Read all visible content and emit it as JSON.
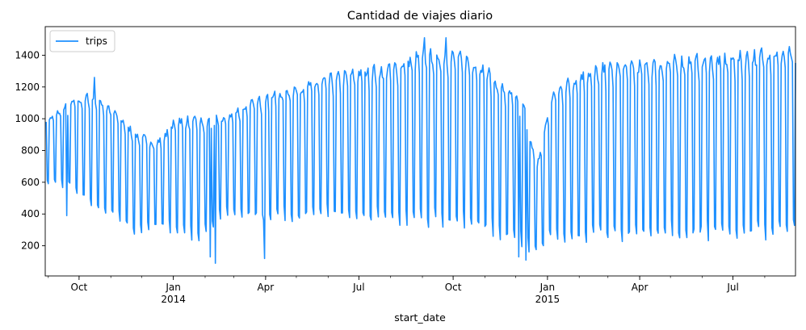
{
  "chart_data": {
    "type": "line",
    "title": "Cantidad de viajes diario",
    "xlabel": "start_date",
    "ylabel": "",
    "x_start": "2013-08-29",
    "x_end": "2015-08-31",
    "ylim": [
      10,
      1580
    ],
    "legend": {
      "position": "top-left",
      "entries": [
        "trips"
      ]
    },
    "grid": false,
    "y_ticks": [
      200,
      400,
      600,
      800,
      1000,
      1200,
      1400
    ],
    "x_ticks": [
      {
        "date": "2013-10-01",
        "label": "Oct",
        "sublabel": ""
      },
      {
        "date": "2014-01-01",
        "label": "Jan",
        "sublabel": "2014"
      },
      {
        "date": "2014-04-01",
        "label": "Apr",
        "sublabel": ""
      },
      {
        "date": "2014-07-01",
        "label": "Jul",
        "sublabel": ""
      },
      {
        "date": "2014-10-01",
        "label": "Oct",
        "sublabel": ""
      },
      {
        "date": "2015-01-01",
        "label": "Jan",
        "sublabel": "2015"
      },
      {
        "date": "2015-04-01",
        "label": "Apr",
        "sublabel": ""
      },
      {
        "date": "2015-07-01",
        "label": "Jul",
        "sublabel": ""
      }
    ],
    "series": [
      {
        "name": "trips",
        "color": "#1e90ff",
        "weekly_profile": [
          [
            "2013-09-02",
            1000,
            620
          ],
          [
            "2013-09-23",
            1100,
            600
          ],
          [
            "2013-10-14",
            1150,
            480
          ],
          [
            "2013-11-04",
            1050,
            420
          ],
          [
            "2013-11-25",
            900,
            320
          ],
          [
            "2013-12-16",
            850,
            350
          ],
          [
            "2014-01-06",
            1000,
            330
          ],
          [
            "2014-01-27",
            980,
            280
          ],
          [
            "2014-02-17",
            1000,
            420
          ],
          [
            "2014-03-10",
            1070,
            430
          ],
          [
            "2014-04-07",
            1150,
            420
          ],
          [
            "2014-05-05",
            1200,
            420
          ],
          [
            "2014-06-02",
            1250,
            430
          ],
          [
            "2014-07-07",
            1300,
            420
          ],
          [
            "2014-08-04",
            1330,
            400
          ],
          [
            "2014-09-01",
            1400,
            400
          ],
          [
            "2014-09-29",
            1400,
            400
          ],
          [
            "2014-10-27",
            1350,
            380
          ],
          [
            "2014-11-17",
            1200,
            300
          ],
          [
            "2014-12-08",
            1100,
            260
          ],
          [
            "2014-12-22",
            700,
            180
          ],
          [
            "2015-01-05",
            1150,
            300
          ],
          [
            "2015-02-02",
            1280,
            300
          ],
          [
            "2015-03-02",
            1320,
            320
          ],
          [
            "2015-04-06",
            1340,
            320
          ],
          [
            "2015-05-04",
            1360,
            320
          ],
          [
            "2015-06-01",
            1370,
            330
          ],
          [
            "2015-07-06",
            1380,
            330
          ],
          [
            "2015-08-03",
            1420,
            340
          ]
        ],
        "notable_values": [
          [
            "2013-09-19",
            390
          ],
          [
            "2013-10-16",
            1260
          ],
          [
            "2014-02-06",
            130
          ],
          [
            "2014-02-11",
            90
          ],
          [
            "2014-03-31",
            120
          ],
          [
            "2014-09-03",
            1510
          ],
          [
            "2014-09-24",
            1510
          ],
          [
            "2014-12-04",
            130
          ],
          [
            "2014-12-11",
            110
          ]
        ]
      }
    ]
  }
}
